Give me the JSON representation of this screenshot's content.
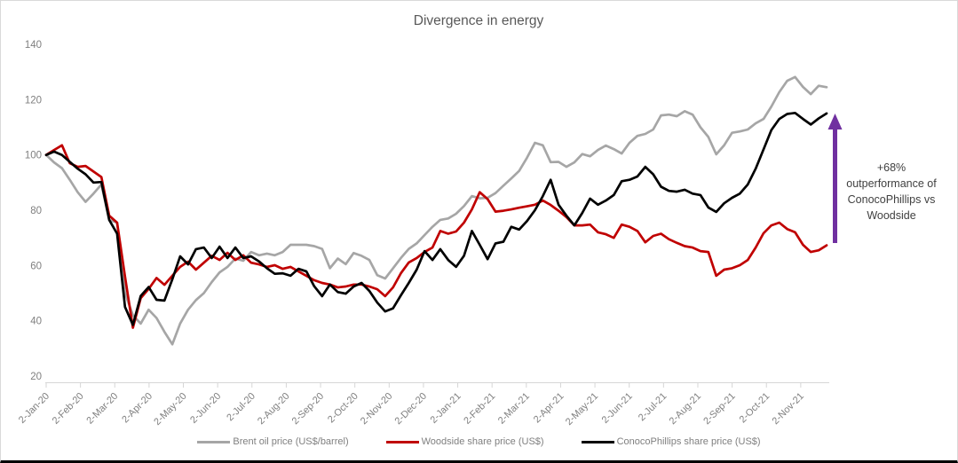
{
  "chart_data": {
    "type": "line",
    "title": "Divergence in energy",
    "xlabel": "",
    "ylabel": "",
    "ylim": [
      20,
      140
    ],
    "y_ticks": [
      140,
      120,
      100,
      80,
      60,
      40,
      20
    ],
    "grid": "off",
    "legend_position": "bottom",
    "x_frequency": "weekly",
    "x_tick_labels": [
      "2-Jan-20",
      "2-Feb-20",
      "2-Mar-20",
      "2-Apr-20",
      "2-May-20",
      "2-Jun-20",
      "2-Jul-20",
      "2-Aug-20",
      "2-Sep-20",
      "2-Oct-20",
      "2-Nov-20",
      "2-Dec-20",
      "2-Jan-21",
      "2-Feb-21",
      "2-Mar-21",
      "2-Apr-21",
      "2-May-21",
      "2-Jun-21",
      "2-Jul-21",
      "2-Aug-21",
      "2-Sep-21",
      "2-Oct-21",
      "2-Nov-21"
    ],
    "series": [
      {
        "name": "Brent oil price (US$/barrel)",
        "color": "#a6a6a6",
        "values": [
          100,
          97.3,
          95.2,
          91,
          86.5,
          83,
          86,
          89.3,
          76.5,
          75.5,
          50,
          42,
          39,
          44,
          41,
          36,
          31.5,
          39,
          44,
          47.5,
          50,
          54,
          57.5,
          59.5,
          62.5,
          61.7,
          64.9,
          63.7,
          64.3,
          63.7,
          64.9,
          67.5,
          67.5,
          67.5,
          67,
          66,
          59,
          62.5,
          60.5,
          64.5,
          63.5,
          62,
          56.5,
          55.3,
          59,
          62.7,
          66,
          68,
          71,
          74,
          76.5,
          77,
          78.7,
          81.5,
          85.1,
          84.3,
          84.5,
          86.2,
          88.9,
          91.5,
          94.2,
          99,
          104.4,
          103.5,
          97.4,
          97.5,
          95.7,
          97.3,
          100.3,
          99.5,
          101.8,
          103.4,
          102.1,
          100.5,
          104.4,
          106.9,
          107.6,
          109.2,
          114.3,
          114.6,
          114,
          115.8,
          114.6,
          110,
          106.5,
          100.2,
          103.5,
          108,
          108.5,
          109.2,
          111.4,
          113,
          117.5,
          122.7,
          126.8,
          128.2,
          124.6,
          122,
          125,
          124.5
        ]
      },
      {
        "name": "Woodside share price (US$)",
        "color": "#c00000",
        "values": [
          100,
          101.8,
          103.5,
          97,
          95.7,
          96,
          94,
          92,
          78,
          75.5,
          56,
          37.5,
          48.2,
          51.5,
          55.5,
          53,
          56.3,
          59.5,
          61.4,
          58.5,
          61,
          63.5,
          62,
          64.6,
          62,
          63.7,
          61,
          60.4,
          59.5,
          60.1,
          58.8,
          59.5,
          57.9,
          56.3,
          54.7,
          53.7,
          53.1,
          52.1,
          52.4,
          53.1,
          53.1,
          52.4,
          51.4,
          48.9,
          52.1,
          57.2,
          61.1,
          62.7,
          64.9,
          66.5,
          72.5,
          71.5,
          72.3,
          75.5,
          80.3,
          86.5,
          84,
          79.5,
          79.8,
          80.3,
          80.9,
          81.4,
          82,
          83.5,
          81.9,
          79.8,
          77.5,
          74.5,
          74.5,
          74.8,
          72,
          71.3,
          70,
          74.8,
          74,
          72.5,
          68.4,
          70.7,
          71.5,
          69.5,
          68.2,
          67,
          66.5,
          65.2,
          64.9,
          56.3,
          58.5,
          59,
          60.1,
          62,
          66.5,
          71.7,
          74.5,
          75.5,
          73.2,
          72,
          67.5,
          64.9,
          65.5,
          67.3
        ]
      },
      {
        "name": "ConocoPhillips share price (US$)",
        "color": "#000000",
        "values": [
          100,
          101.2,
          100,
          97.5,
          95,
          93,
          90,
          90.2,
          76.5,
          71.5,
          45,
          38.5,
          49,
          52.2,
          47.6,
          47.3,
          55,
          63.3,
          60.4,
          65.9,
          66.5,
          62.7,
          66.8,
          62.7,
          66.5,
          62.7,
          63.3,
          61.5,
          59,
          57,
          57.2,
          56.3,
          58.8,
          57.9,
          52.5,
          48.9,
          53.1,
          50.4,
          49.8,
          52.4,
          53.7,
          50.8,
          46.6,
          43.4,
          44.5,
          49.2,
          53.7,
          58.5,
          65.2,
          62,
          65.9,
          62,
          59.5,
          63.5,
          72.5,
          67.5,
          62.3,
          68,
          68.6,
          74,
          73,
          76.1,
          80,
          85.1,
          91,
          82,
          78,
          74.5,
          79,
          84.2,
          82,
          83.5,
          85.5,
          90.5,
          91,
          92.2,
          95.7,
          93,
          88.5,
          87,
          86.7,
          87.4,
          86,
          85.5,
          81,
          79.4,
          82.5,
          84.5,
          86,
          89.3,
          95,
          102,
          109,
          113,
          114.8,
          115.2,
          113,
          111,
          113.2,
          115
        ]
      }
    ],
    "annotation": {
      "lines": [
        "+68%",
        "outperformance of",
        "ConocoPhillips vs",
        "Woodside"
      ],
      "arrow_color": "#7030a0"
    }
  }
}
